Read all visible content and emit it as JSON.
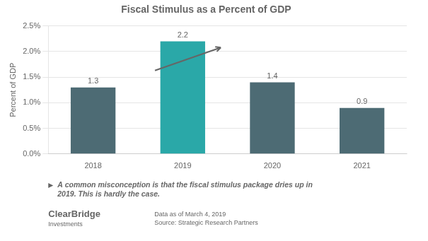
{
  "chart_data": {
    "type": "bar",
    "title": "Fiscal Stimulus as a Percent of GDP",
    "ylabel": "Percent of GDP",
    "categories": [
      "2018",
      "2019",
      "2020",
      "2021"
    ],
    "values": [
      1.3,
      2.2,
      1.4,
      0.9
    ],
    "colors": [
      "#4d6b74",
      "#2aa8a8",
      "#4d6b74",
      "#4d6b74"
    ],
    "ylim": [
      0,
      2.5
    ],
    "yticks": [
      {
        "value": 0.0,
        "label": "0.0%"
      },
      {
        "value": 0.5,
        "label": "0.5%"
      },
      {
        "value": 1.0,
        "label": "1.0%"
      },
      {
        "value": 1.5,
        "label": "1.5%"
      },
      {
        "value": 2.0,
        "label": "2.0%"
      },
      {
        "value": 2.5,
        "label": "2.5%"
      }
    ],
    "grid": true,
    "data_labels": true,
    "annotations": [
      "A common misconception is that the fiscal stimulus package dries up in\n2019. This is hardly the case.",
      "ClearBridge",
      "Investments",
      "Data as of March 4, 2019",
      "Source: Strategic Research Partners"
    ]
  }
}
